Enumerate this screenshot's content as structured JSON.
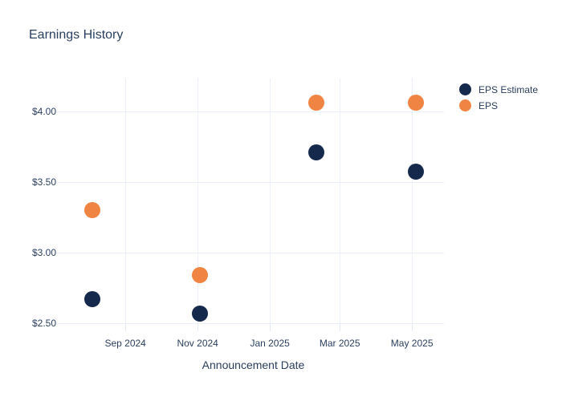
{
  "title": "Earnings History",
  "colors": {
    "background": "#ffffff",
    "text": "#2a3f5f",
    "grid": "#ebf0f8",
    "tick": "#e3e9f3",
    "eps_estimate": "#14294b",
    "eps": "#f08442"
  },
  "legend": {
    "items": [
      {
        "label": "EPS Estimate",
        "color": "#14294b"
      },
      {
        "label": "EPS",
        "color": "#f08442"
      }
    ]
  },
  "chart_data": {
    "type": "scatter",
    "title": "Earnings History",
    "xlabel": "Announcement Date",
    "ylabel": "",
    "grid": true,
    "legend_position": "right-outside-top",
    "marker_diameter_px": 20,
    "x_range": [
      "2024-07-10",
      "2025-05-28"
    ],
    "y_range": [
      2.49,
      4.23
    ],
    "x_ticks": [
      {
        "date": "2024-09-01",
        "label": "Sep 2024"
      },
      {
        "date": "2024-11-01",
        "label": "Nov 2024"
      },
      {
        "date": "2025-01-01",
        "label": "Jan 2025"
      },
      {
        "date": "2025-03-01",
        "label": "Mar 2025"
      },
      {
        "date": "2025-05-01",
        "label": "May 2025"
      }
    ],
    "y_ticks": [
      {
        "value": 2.5,
        "label": "$2.50"
      },
      {
        "value": 3.0,
        "label": "$3.00"
      },
      {
        "value": 3.5,
        "label": "$3.50"
      },
      {
        "value": 4.0,
        "label": "$4.00"
      }
    ],
    "series": [
      {
        "name": "EPS Estimate",
        "color": "#14294b",
        "points": [
          {
            "x": "2024-08-04",
            "y": 2.67
          },
          {
            "x": "2024-11-03",
            "y": 2.57
          },
          {
            "x": "2025-02-09",
            "y": 3.71
          },
          {
            "x": "2025-05-04",
            "y": 3.57
          }
        ]
      },
      {
        "name": "EPS",
        "color": "#f08442",
        "points": [
          {
            "x": "2024-08-04",
            "y": 3.3
          },
          {
            "x": "2024-11-03",
            "y": 2.84
          },
          {
            "x": "2025-02-09",
            "y": 4.06
          },
          {
            "x": "2025-05-04",
            "y": 4.06
          }
        ]
      }
    ]
  }
}
